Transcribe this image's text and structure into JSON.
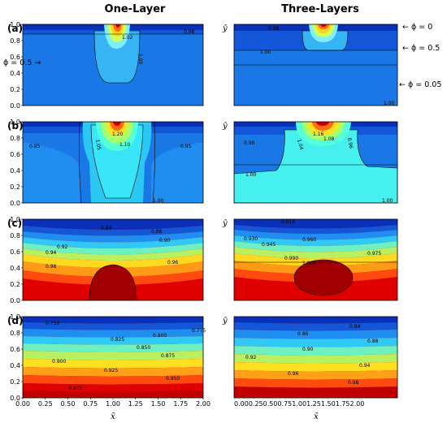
{
  "figure": {
    "column_titles": [
      "One-Layer",
      "Three-Layers"
    ],
    "row_labels": [
      "(a)",
      "(b)",
      "(c)",
      "(d)"
    ],
    "ylabel": "ȳ",
    "xlabel": "x̄",
    "annotations_right": [
      "← ϕ = 0",
      "← ϕ = 0.5",
      "← ϕ = 0.05"
    ],
    "annotation_left": "ϕ = 0.5 →",
    "colors": {
      "min_blue": "#08108f",
      "max_red": "#b40000",
      "contour_line": "#000000",
      "axis": "#000000"
    }
  },
  "chart_data": [
    {
      "id": "a-one-layer",
      "type": "heatmap",
      "row": "(a)",
      "column": "One-Layer",
      "xlim": [
        0,
        2
      ],
      "ylim": [
        0,
        1
      ],
      "xticks_shown": false,
      "yticks": [
        "0.0",
        "0.2",
        "0.4",
        "0.6",
        "0.8",
        "1.0"
      ],
      "contour_labels": [
        "1.02",
        "0.98",
        "1.00"
      ],
      "description": "Plume of values above 1 beneath the top centre; field near 1.00 elsewhere"
    },
    {
      "id": "a-three-layers",
      "type": "heatmap",
      "row": "(a)",
      "column": "Three-Layers",
      "xlim": [
        0,
        1.75
      ],
      "ylim": [
        0,
        1
      ],
      "xticks_shown": false,
      "contour_labels": [
        "1.00",
        "0.98",
        "1.00"
      ],
      "interface_line_y": 0.47
    },
    {
      "id": "b-one-layer",
      "type": "heatmap",
      "row": "(b)",
      "column": "One-Layer",
      "xlim": [
        0,
        2
      ],
      "ylim": [
        0,
        1
      ],
      "xticks_shown": false,
      "yticks": [
        "0.0",
        "0.2",
        "0.4",
        "0.6",
        "0.8",
        "1.0"
      ],
      "contour_labels": [
        "1.20",
        "1.10",
        "1.05",
        "0.95",
        "0.95",
        "1.00"
      ]
    },
    {
      "id": "b-three-layers",
      "type": "heatmap",
      "row": "(b)",
      "column": "Three-Layers",
      "xlim": [
        0,
        1.75
      ],
      "ylim": [
        0,
        1
      ],
      "xticks_shown": false,
      "contour_labels": [
        "1.16",
        "1.08",
        "1.04",
        "0.96",
        "1.00",
        "0.96",
        "1.00"
      ],
      "interface_line_y": 0.47
    },
    {
      "id": "c-one-layer",
      "type": "heatmap",
      "row": "(c)",
      "column": "One-Layer",
      "xlim": [
        0,
        2
      ],
      "ylim": [
        0,
        1
      ],
      "xticks_shown": false,
      "yticks": [
        "0.0",
        "0.2",
        "0.4",
        "0.6",
        "0.8",
        "1.0"
      ],
      "contour_labels": [
        "0.84",
        "0.88",
        "0.90",
        "0.92",
        "0.94",
        "0.96",
        "0.98"
      ]
    },
    {
      "id": "c-three-layers",
      "type": "heatmap",
      "row": "(c)",
      "column": "Three-Layers",
      "xlim": [
        0,
        1.75
      ],
      "ylim": [
        0,
        1
      ],
      "xticks_shown": false,
      "contour_labels": [
        "0.915",
        "0.930",
        "0.945",
        "0.960",
        "0.975",
        "0.990",
        "1.005"
      ],
      "interface_line_y": 0.47
    },
    {
      "id": "d-one-layer",
      "type": "heatmap",
      "row": "(d)",
      "column": "One-Layer",
      "xlim": [
        0,
        2
      ],
      "ylim": [
        0,
        1
      ],
      "xticks": [
        "0.00",
        "0.25",
        "0.50",
        "0.75",
        "1.00",
        "1.25",
        "1.50",
        "1.75",
        "2.00"
      ],
      "yticks": [
        "0.0",
        "0.2",
        "0.4",
        "0.6",
        "0.8",
        "1.0"
      ],
      "contour_labels": [
        "0.750",
        "0.775",
        "0.800",
        "0.825",
        "0.850",
        "0.875",
        "0.900",
        "0.925",
        "0.950",
        "0.975"
      ]
    },
    {
      "id": "d-three-layers",
      "type": "heatmap",
      "row": "(d)",
      "column": "Three-Layers",
      "xlim": [
        0,
        1.75
      ],
      "ylim": [
        0,
        1
      ],
      "xticks": [
        "0.000.250.500.751.001.251.501.752.00"
      ],
      "contour_labels": [
        "0.84",
        "0.86",
        "0.88",
        "0.90",
        "0.92",
        "0.94",
        "0.96",
        "0.98"
      ]
    }
  ]
}
